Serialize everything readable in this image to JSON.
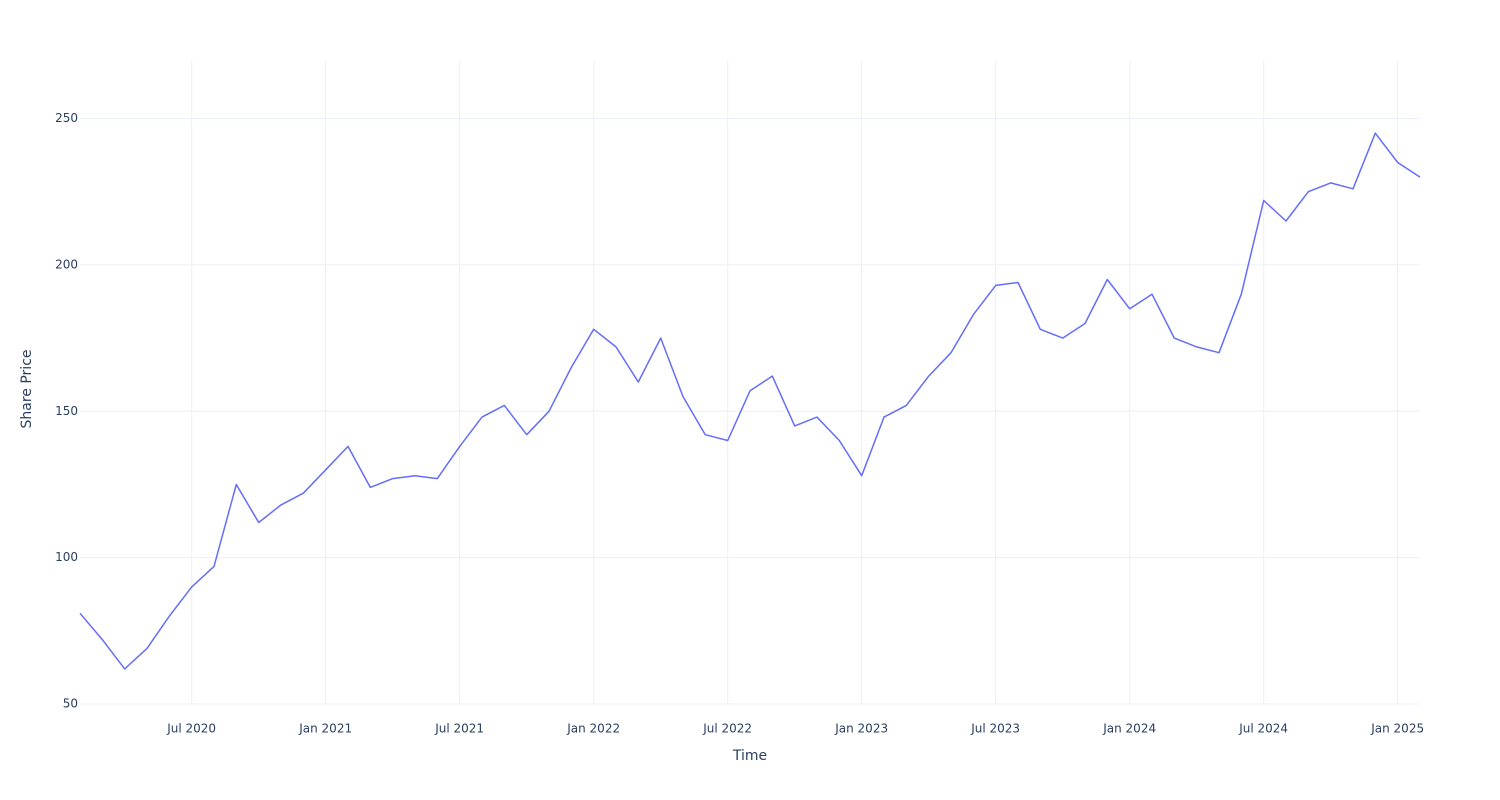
{
  "chart_data": {
    "type": "line",
    "x_label": "Time",
    "y_label": "Share Price",
    "x": [
      "2020-02",
      "2020-03",
      "2020-04",
      "2020-05",
      "2020-06",
      "2020-07",
      "2020-08",
      "2020-09",
      "2020-10",
      "2020-11",
      "2020-12",
      "2021-01",
      "2021-02",
      "2021-03",
      "2021-04",
      "2021-05",
      "2021-06",
      "2021-07",
      "2021-08",
      "2021-09",
      "2021-10",
      "2021-11",
      "2021-12",
      "2022-01",
      "2022-02",
      "2022-03",
      "2022-04",
      "2022-05",
      "2022-06",
      "2022-07",
      "2022-08",
      "2022-09",
      "2022-10",
      "2022-11",
      "2022-12",
      "2023-01",
      "2023-02",
      "2023-03",
      "2023-04",
      "2023-05",
      "2023-06",
      "2023-07",
      "2023-08",
      "2023-09",
      "2023-10",
      "2023-11",
      "2023-12",
      "2024-01",
      "2024-02",
      "2024-03",
      "2024-04",
      "2024-05",
      "2024-06",
      "2024-07",
      "2024-08",
      "2024-09",
      "2024-10",
      "2024-11",
      "2024-12",
      "2025-01",
      "2025-02"
    ],
    "series": [
      {
        "color": "#636efa",
        "values": [
          81,
          72,
          62,
          69,
          80,
          90,
          97,
          125,
          112,
          118,
          122,
          130,
          138,
          124,
          127,
          128,
          127,
          138,
          148,
          152,
          142,
          150,
          165,
          178,
          172,
          160,
          175,
          155,
          142,
          140,
          157,
          162,
          145,
          148,
          140,
          128,
          148,
          152,
          162,
          170,
          183,
          193,
          194,
          178,
          175,
          180,
          195,
          185,
          190,
          175,
          172,
          170,
          190,
          222,
          215,
          225,
          228,
          226,
          245,
          235,
          230
        ]
      }
    ],
    "xlim": [
      "2020-02",
      "2025-02"
    ],
    "xticks": [
      {
        "value": "2020-07",
        "label": "Jul 2020"
      },
      {
        "value": "2021-01",
        "label": "Jan 2021"
      },
      {
        "value": "2021-07",
        "label": "Jul 2021"
      },
      {
        "value": "2022-01",
        "label": "Jan 2022"
      },
      {
        "value": "2022-07",
        "label": "Jul 2022"
      },
      {
        "value": "2023-01",
        "label": "Jan 2023"
      },
      {
        "value": "2023-07",
        "label": "Jul 2023"
      },
      {
        "value": "2024-01",
        "label": "Jan 2024"
      },
      {
        "value": "2024-07",
        "label": "Jul 2024"
      },
      {
        "value": "2025-01",
        "label": "Jan 2025"
      }
    ],
    "ylim": [
      50,
      270
    ],
    "yticks": [
      50,
      100,
      150,
      200,
      250
    ],
    "grid": true
  }
}
